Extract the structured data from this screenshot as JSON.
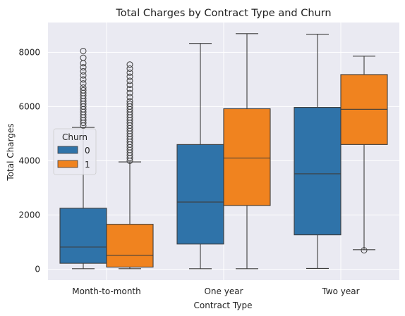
{
  "chart_data": {
    "type": "box",
    "title": "Total Charges by Contract Type and Churn",
    "xlabel": "Contract Type",
    "ylabel": "Total Charges",
    "ylim": [
      -400,
      9100
    ],
    "yticks": [
      0,
      2000,
      4000,
      6000,
      8000
    ],
    "categories": [
      "Month-to-month",
      "One year",
      "Two year"
    ],
    "legend": {
      "title": "Churn",
      "placement": "center-left"
    },
    "grid": true,
    "series": [
      {
        "name": "0",
        "color": "#2f73a9",
        "boxes": [
          {
            "category": "Month-to-month",
            "whisker_low": 19,
            "q1": 220,
            "median": 820,
            "q3": 2250,
            "whisker_high": 5230,
            "outliers": [
              5300,
              5400,
              5500,
              5600,
              5700,
              5800,
              5900,
              6000,
              6100,
              6200,
              6300,
              6400,
              6500,
              6600,
              6700,
              6850,
              7000,
              7150,
              7300,
              7450,
              7600,
              7800,
              8050
            ]
          },
          {
            "category": "One year",
            "whisker_low": 19,
            "q1": 930,
            "median": 2480,
            "q3": 4600,
            "whisker_high": 8330,
            "outliers": []
          },
          {
            "category": "Two year",
            "whisker_low": 30,
            "q1": 1270,
            "median": 3520,
            "q3": 5970,
            "whisker_high": 8670,
            "outliers": []
          }
        ]
      },
      {
        "name": "1",
        "color": "#f0831f",
        "boxes": [
          {
            "category": "Month-to-month",
            "whisker_low": 19,
            "q1": 80,
            "median": 520,
            "q3": 1660,
            "whisker_high": 3960,
            "outliers": [
              4000,
              4100,
              4200,
              4300,
              4400,
              4500,
              4600,
              4700,
              4800,
              4900,
              5000,
              5100,
              5200,
              5300,
              5400,
              5500,
              5600,
              5700,
              5800,
              5900,
              6000,
              6100,
              6200,
              6350,
              6500,
              6650,
              6800,
              6950,
              7100,
              7250,
              7400,
              7550
            ]
          },
          {
            "category": "One year",
            "whisker_low": 20,
            "q1": 2350,
            "median": 4100,
            "q3": 5920,
            "whisker_high": 8690,
            "outliers": []
          },
          {
            "category": "Two year",
            "whisker_low": 720,
            "q1": 4600,
            "median": 5900,
            "q3": 7180,
            "whisker_high": 7860,
            "outliers": [
              700
            ]
          }
        ]
      }
    ]
  }
}
